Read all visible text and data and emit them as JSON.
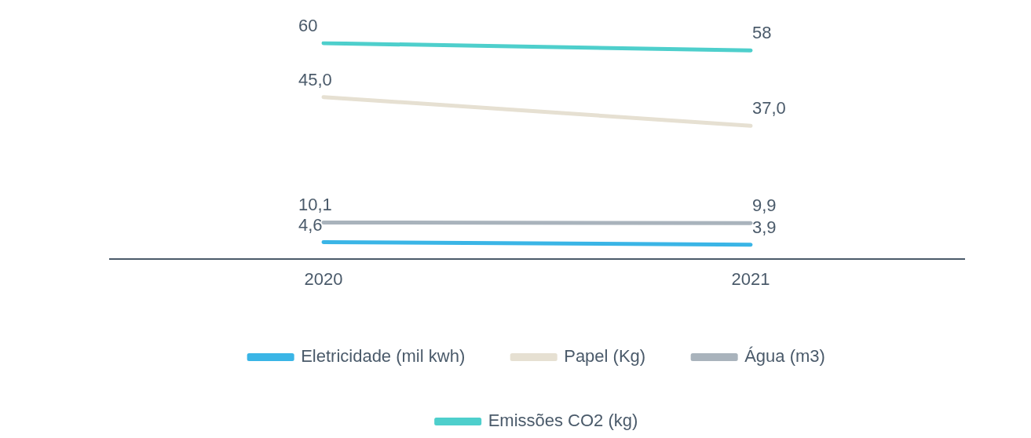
{
  "chart_data": {
    "type": "line",
    "categories": [
      "2020",
      "2021"
    ],
    "marker": "none",
    "legend": "bottom",
    "grid": false,
    "tick_labels": "x",
    "series": [
      {
        "name": "Eletricidade (mil kwh)",
        "color": "#3ab5e6",
        "values": [
          4.6,
          3.9
        ],
        "value_labels": [
          "4,6",
          "3,9"
        ]
      },
      {
        "name": "Papel (Kg)",
        "color": "#e6e0d2",
        "values": [
          45.0,
          37.0
        ],
        "value_labels": [
          "45,0",
          "37,0"
        ]
      },
      {
        "name": "Água (m3)",
        "color": "#a9b3bc",
        "values": [
          10.1,
          9.9
        ],
        "value_labels": [
          "10,1",
          "9,9"
        ]
      },
      {
        "name": "Emissões CO2 (kg)",
        "color": "#4ecfcc",
        "values": [
          60,
          58
        ],
        "value_labels": [
          "60",
          "58"
        ]
      }
    ]
  }
}
